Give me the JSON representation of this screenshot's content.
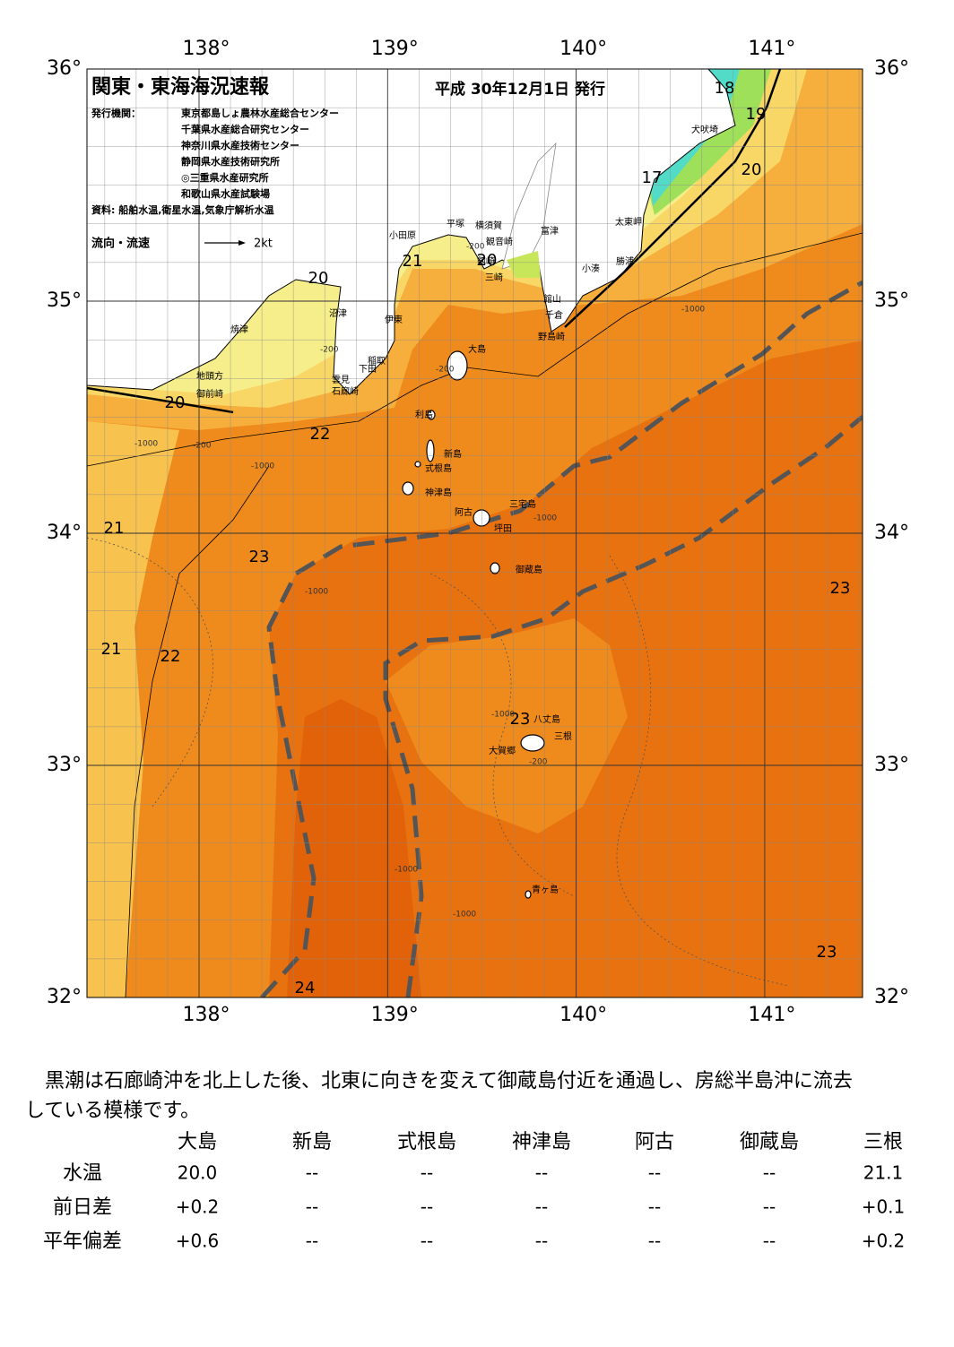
{
  "map": {
    "title": "関東・東海海況速報",
    "issue_date": "平成 30年12月1日 発行",
    "publisher_label": "発行機関：",
    "publishers": [
      "東京都島しょ農林水産総合センター",
      "千葉県水産総合研究センター",
      "神奈川県水産技術センター",
      "静岡県水産技術研究所",
      "◎三重県水産研究所",
      "和歌山県水産試験場"
    ],
    "sources": "資料: 船舶水温,衛星水温,気象庁解析水温",
    "current_legend": "流向・流速",
    "current_scale": "2kt",
    "lon_ticks": [
      {
        "value": 138,
        "label": "138°"
      },
      {
        "value": 139,
        "label": "139°"
      },
      {
        "value": 140,
        "label": "140°"
      },
      {
        "value": 141,
        "label": "141°"
      }
    ],
    "lat_ticks": [
      {
        "value": 36,
        "label": "36°"
      },
      {
        "value": 35,
        "label": "35°"
      },
      {
        "value": 34,
        "label": "34°"
      },
      {
        "value": 33,
        "label": "33°"
      },
      {
        "value": 32,
        "label": "32°"
      }
    ],
    "place_names": [
      "大島",
      "利島",
      "新島",
      "式根島",
      "神津島",
      "三宅島",
      "阿古",
      "坪田",
      "御蔵島",
      "八丈島",
      "三根",
      "大賀郷",
      "青ヶ島",
      "小田原",
      "平塚",
      "横須賀",
      "観音崎",
      "富津",
      "剱崎",
      "三崎",
      "館山",
      "千倉",
      "野島崎",
      "小湊",
      "勝浦",
      "太東岬",
      "犬吠埼",
      "沼津",
      "伊東",
      "焼津",
      "稲取",
      "下田",
      "雲見",
      "石廊崎",
      "地頭方",
      "御前崎"
    ],
    "temperature_labels": [
      "18",
      "19",
      "20",
      "17",
      "21",
      "20",
      "20",
      "20",
      "22",
      "21",
      "23",
      "23",
      "21",
      "22",
      "23",
      "23",
      "24"
    ],
    "depth_labels": [
      "-200",
      "-200",
      "-200",
      "-200",
      "-1000",
      "-1000",
      "-1000",
      "-1000",
      "-1000",
      "-1000",
      "-1000",
      "-1000",
      "-200"
    ]
  },
  "description": [
    "黒潮は石廊崎沖を北上した後、北東に向きを変えて御蔵島付近を通過し、房総半島沖に流去",
    "している模様です。"
  ],
  "table": {
    "columns": [
      "大島",
      "新島",
      "式根島",
      "神津島",
      "阿古",
      "御蔵島",
      "三根"
    ],
    "rows": [
      {
        "label": "水温",
        "cells": [
          "20.0",
          "--",
          "--",
          "--",
          "--",
          "--",
          "21.1"
        ]
      },
      {
        "label": "前日差",
        "cells": [
          "+0.2",
          "--",
          "--",
          "--",
          "--",
          "--",
          "+0.1"
        ]
      },
      {
        "label": "平年偏差",
        "cells": [
          "+0.6",
          "--",
          "--",
          "--",
          "--",
          "--",
          "+0.2"
        ]
      }
    ]
  }
}
